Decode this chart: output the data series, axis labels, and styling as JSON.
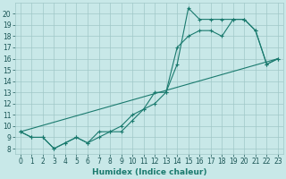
{
  "line1_x": [
    0,
    1,
    2,
    3,
    4,
    5,
    6,
    7,
    8,
    9,
    10,
    11,
    12,
    13,
    14,
    15,
    16,
    17,
    18,
    19,
    20,
    21,
    22,
    23
  ],
  "line1_y": [
    9.5,
    9.0,
    9.0,
    8.0,
    8.5,
    9.0,
    8.5,
    9.0,
    9.5,
    9.5,
    10.5,
    11.5,
    12.0,
    13.0,
    15.5,
    20.5,
    19.5,
    19.5,
    19.5,
    19.5,
    19.5,
    18.5,
    15.5,
    16.0
  ],
  "line2_x": [
    0,
    1,
    2,
    3,
    4,
    5,
    6,
    7,
    8,
    9,
    10,
    11,
    12,
    13,
    14,
    15,
    16,
    17,
    18,
    19,
    20,
    21,
    22,
    23
  ],
  "line2_y": [
    9.5,
    9.0,
    9.0,
    8.0,
    8.5,
    9.0,
    8.5,
    9.5,
    9.5,
    10.0,
    11.0,
    11.5,
    13.0,
    13.0,
    17.0,
    18.0,
    18.5,
    18.5,
    18.0,
    19.5,
    19.5,
    18.5,
    15.5,
    16.0
  ],
  "line3_x": [
    0,
    23
  ],
  "line3_y": [
    9.5,
    16.0
  ],
  "color": "#1a7a6e",
  "bg_color": "#c8e8e8",
  "grid_color": "#a0c8c8",
  "xlabel": "Humidex (Indice chaleur)",
  "xlim": [
    -0.5,
    23.5
  ],
  "ylim": [
    7.5,
    21.0
  ],
  "xticks": [
    0,
    1,
    2,
    3,
    4,
    5,
    6,
    7,
    8,
    9,
    10,
    11,
    12,
    13,
    14,
    15,
    16,
    17,
    18,
    19,
    20,
    21,
    22,
    23
  ],
  "yticks": [
    8,
    9,
    10,
    11,
    12,
    13,
    14,
    15,
    16,
    17,
    18,
    19,
    20
  ],
  "label_fontsize": 6.5,
  "tick_fontsize": 5.5
}
